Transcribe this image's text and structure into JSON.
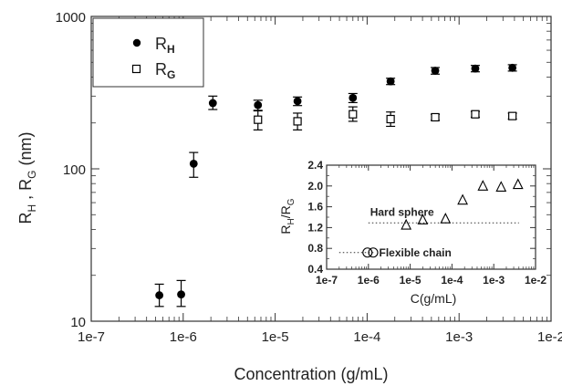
{
  "chart_data": [
    {
      "type": "scatter",
      "xscale": "log",
      "yscale": "log",
      "xlim": [
        1e-07,
        0.01
      ],
      "ylim": [
        10,
        1000
      ],
      "xticks": [
        "1e-7",
        "1e-6",
        "1e-5",
        "1e-4",
        "1e-3",
        "1e-2"
      ],
      "yticks": [
        "10",
        "100",
        "1000"
      ],
      "xlabel": "Concentration (g/mL)",
      "ylabel": "R_H , R_G (nm)",
      "legend_position": "top-left",
      "series": [
        {
          "name": "RH",
          "marker": "filled-circle",
          "points": [
            {
              "x": 5.5e-07,
              "y": 14.8,
              "lo": 12.5,
              "hi": 17.5
            },
            {
              "x": 9.5e-07,
              "y": 15.0,
              "lo": 12.5,
              "hi": 18.5
            },
            {
              "x": 1.3e-06,
              "y": 108,
              "lo": 88,
              "hi": 128
            },
            {
              "x": 2.1e-06,
              "y": 270,
              "lo": 245,
              "hi": 300
            },
            {
              "x": 6.5e-06,
              "y": 262,
              "lo": 242,
              "hi": 282
            },
            {
              "x": 1.75e-05,
              "y": 278,
              "lo": 260,
              "hi": 296
            },
            {
              "x": 7e-05,
              "y": 292,
              "lo": 272,
              "hi": 312
            },
            {
              "x": 0.00018,
              "y": 375,
              "lo": 357,
              "hi": 393
            },
            {
              "x": 0.00055,
              "y": 440,
              "lo": 418,
              "hi": 462
            },
            {
              "x": 0.0015,
              "y": 455,
              "lo": 433,
              "hi": 477
            },
            {
              "x": 0.0038,
              "y": 460,
              "lo": 438,
              "hi": 482
            }
          ]
        },
        {
          "name": "RG",
          "marker": "open-square",
          "points": [
            {
              "x": 6.5e-06,
              "y": 210,
              "lo": 180,
              "hi": 240
            },
            {
              "x": 1.75e-05,
              "y": 205,
              "lo": 180,
              "hi": 232
            },
            {
              "x": 7e-05,
              "y": 228,
              "lo": 205,
              "hi": 255
            },
            {
              "x": 0.00018,
              "y": 212,
              "lo": 190,
              "hi": 236
            },
            {
              "x": 0.00055,
              "y": 218,
              "lo": 208,
              "hi": 228
            },
            {
              "x": 0.0015,
              "y": 228,
              "lo": 218,
              "hi": 238
            },
            {
              "x": 0.0038,
              "y": 222,
              "lo": 212,
              "hi": 232
            }
          ]
        }
      ],
      "legend": [
        {
          "base": "R",
          "sub": "H"
        },
        {
          "base": "R",
          "sub": "G"
        }
      ]
    },
    {
      "type": "scatter",
      "position": "inset",
      "xscale": "log",
      "xlim": [
        1e-07,
        0.01
      ],
      "ylim": [
        0.4,
        2.4
      ],
      "xticks": [
        "1e-7",
        "1e-6",
        "1e-5",
        "1e-4",
        "1e-3",
        "1e-2"
      ],
      "yticks": [
        "0.4",
        "0.8",
        "1.2",
        "1.6",
        "2.0",
        "2.4"
      ],
      "xlabel": "C(g/mL)",
      "ylabel": "RH/RG",
      "series": [
        {
          "name": "",
          "marker": "open-circle",
          "points": [
            {
              "x": 9.5e-07,
              "y": 0.72
            },
            {
              "x": 1.3e-06,
              "y": 0.72
            }
          ]
        },
        {
          "name": "",
          "marker": "open-triangle",
          "points": [
            {
              "x": 8e-06,
              "y": 1.25
            },
            {
              "x": 2e-05,
              "y": 1.35
            },
            {
              "x": 7e-05,
              "y": 1.37
            },
            {
              "x": 0.00018,
              "y": 1.73
            },
            {
              "x": 0.00055,
              "y": 2.0
            },
            {
              "x": 0.0015,
              "y": 1.98
            },
            {
              "x": 0.0038,
              "y": 2.03
            }
          ]
        }
      ],
      "reference_lines": [
        {
          "y": 1.29,
          "x_from": 1e-06,
          "x_to": 0.004,
          "label": "Hard sphere"
        },
        {
          "y": 0.72,
          "x_from": 2e-07,
          "x_to": 1.4e-06,
          "label": "Flexible chain"
        }
      ]
    }
  ]
}
